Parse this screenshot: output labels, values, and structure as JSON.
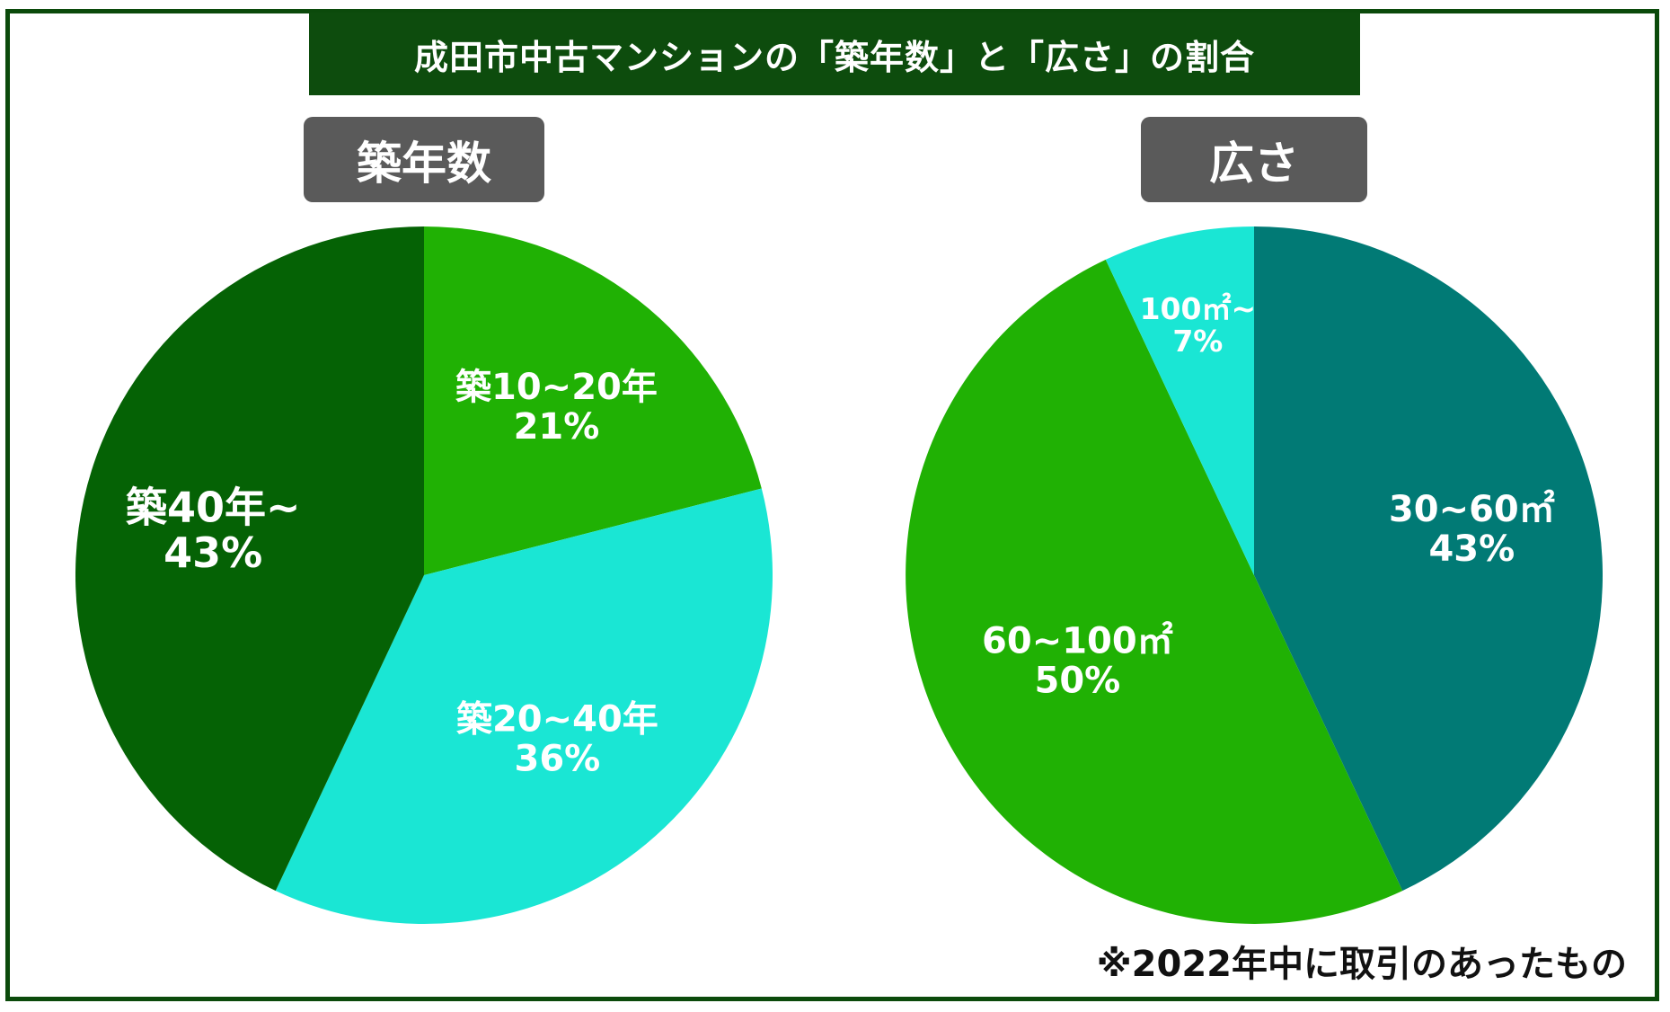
{
  "title": "成田市中古マンションの「築年数」と「広さ」の割合",
  "footnote": "※2022年中に取引のあったもの",
  "colors": {
    "frame": "#0b4a0b",
    "title_bg": "#0d4c0d",
    "header_bg": "#5a5a5a",
    "dark_green": "#056205",
    "green": "#20b104",
    "cyan": "#1ae6d4",
    "teal": "#017a75"
  },
  "chart_data": [
    {
      "type": "pie",
      "title": "築年数",
      "start_angle": "12 o'clock, clockwise",
      "slices": [
        {
          "label": "築10~20年",
          "pct_label": "21%",
          "value": 21,
          "color": "#20b104"
        },
        {
          "label": "築20~40年",
          "pct_label": "36%",
          "value": 36,
          "color": "#1ae6d4"
        },
        {
          "label": "築40年~",
          "pct_label": "43%",
          "value": 43,
          "color": "#056205"
        }
      ]
    },
    {
      "type": "pie",
      "title": "広さ",
      "start_angle": "12 o'clock, clockwise",
      "slices": [
        {
          "label": "30~60㎡",
          "pct_label": "43%",
          "value": 43,
          "color": "#017a75"
        },
        {
          "label": "60~100㎡",
          "pct_label": "50%",
          "value": 50,
          "color": "#20b104"
        },
        {
          "label": "100㎡~",
          "pct_label": "7%",
          "value": 7,
          "color": "#1ae6d4"
        }
      ]
    }
  ]
}
